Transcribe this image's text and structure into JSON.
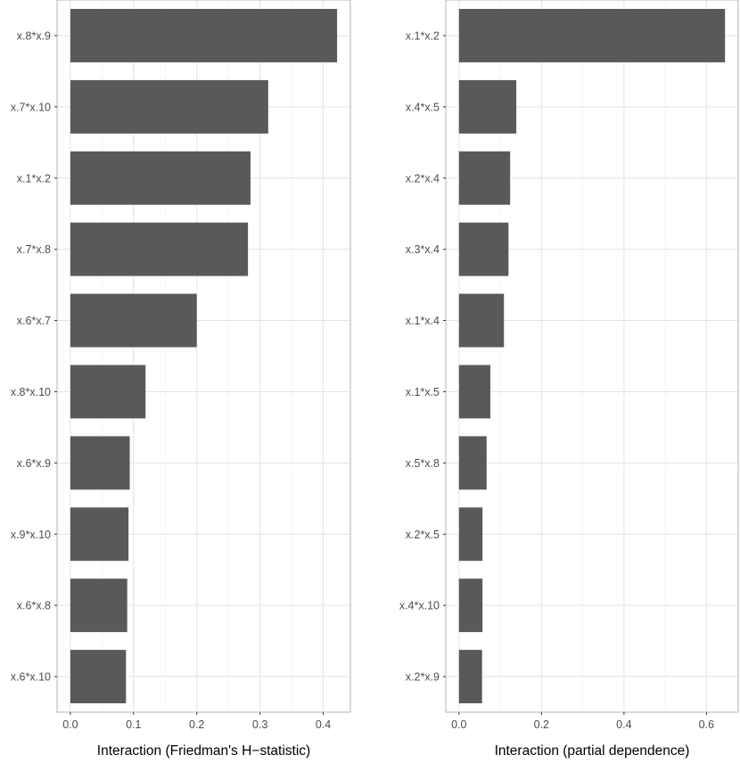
{
  "chart_data": [
    {
      "type": "bar",
      "orientation": "horizontal",
      "xlabel": "Interaction (Friedman's H−statistic)",
      "categories": [
        "x.8*x.9",
        "x.7*x.10",
        "x.1*x.2",
        "x.7*x.8",
        "x.6*x.7",
        "x.8*x.10",
        "x.6*x.9",
        "x.9*x.10",
        "x.6*x.8",
        "x.6*x.10"
      ],
      "values": [
        0.422,
        0.313,
        0.285,
        0.281,
        0.2,
        0.119,
        0.094,
        0.092,
        0.09,
        0.088
      ],
      "xlim": [
        -0.021,
        0.443
      ],
      "ticks": [
        0.0,
        0.1,
        0.2,
        0.3,
        0.4
      ],
      "tick_labels": [
        "0.0",
        "0.1",
        "0.2",
        "0.3",
        "0.4"
      ],
      "grid": true,
      "bar_color": "#595959"
    },
    {
      "type": "bar",
      "orientation": "horizontal",
      "xlabel": "Interaction (partial dependence)",
      "categories": [
        "x.1*x.2",
        "x.4*x.5",
        "x.2*x.4",
        "x.3*x.4",
        "x.1*x.4",
        "x.1*x.5",
        "x.5*x.8",
        "x.2*x.5",
        "x.4*x.10",
        "x.2*x.9"
      ],
      "values": [
        0.645,
        0.139,
        0.124,
        0.12,
        0.109,
        0.076,
        0.067,
        0.057,
        0.057,
        0.056
      ],
      "xlim": [
        -0.032,
        0.677
      ],
      "ticks": [
        0.0,
        0.2,
        0.4,
        0.6
      ],
      "tick_labels": [
        "0.0",
        "0.2",
        "0.4",
        "0.6"
      ],
      "grid": true,
      "bar_color": "#595959"
    }
  ]
}
